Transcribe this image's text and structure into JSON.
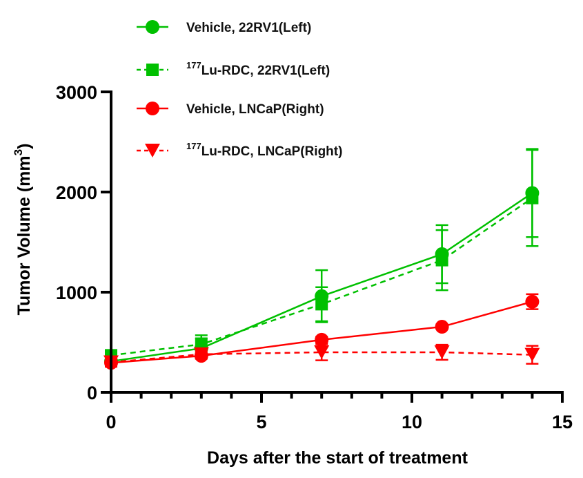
{
  "chart_data": {
    "type": "line",
    "title": "",
    "xlabel": "Days after the start of treatment",
    "ylabel": "Tumor Volume (mm",
    "ylabel_sup": "3",
    "ylabel_end": ")",
    "xlim": [
      0,
      15
    ],
    "ylim": [
      0,
      3000
    ],
    "xticks": [
      0,
      5,
      10,
      15
    ],
    "xtick_labels": [
      "0",
      "5",
      "10",
      "15"
    ],
    "xminor_step": 1,
    "yticks": [
      0,
      1000,
      2000,
      3000
    ],
    "ytick_labels": [
      "0",
      "1000",
      "2000",
      "3000"
    ],
    "grid": false,
    "legend_position": "top",
    "x": [
      0,
      3,
      7,
      11,
      14
    ],
    "series": [
      {
        "name": "Vehicle, 22RV1(Left)",
        "legend_sup": "",
        "legend_text": "Vehicle, 22RV1(Left)",
        "color": "#00c000",
        "marker": "circle",
        "dash": false,
        "values": [
          310,
          440,
          960,
          1380,
          1990
        ],
        "errors": [
          40,
          100,
          260,
          290,
          440
        ]
      },
      {
        "name": "177Lu-RDC, 22RV1(Left)",
        "legend_sup": "177",
        "legend_text": "Lu-RDC, 22RV1(Left)",
        "color": "#00c000",
        "marker": "square",
        "dash": true,
        "values": [
          370,
          480,
          880,
          1320,
          1940
        ],
        "errors": [
          40,
          90,
          170,
          300,
          480
        ]
      },
      {
        "name": "Vehicle, LNCaP(Right)",
        "legend_sup": "",
        "legend_text": "Vehicle, LNCaP(Right)",
        "color": "#ff0000",
        "marker": "circle",
        "dash": false,
        "values": [
          295,
          365,
          525,
          655,
          905
        ],
        "errors": [
          40,
          30,
          30,
          25,
          75
        ]
      },
      {
        "name": "177Lu-RDC, LNCaP(Right)",
        "legend_sup": "177",
        "legend_text": "Lu-RDC, LNCaP(Right)",
        "color": "#ff0000",
        "marker": "triangle-down",
        "dash": true,
        "values": [
          300,
          380,
          400,
          400,
          375
        ],
        "errors": [
          30,
          30,
          80,
          75,
          90
        ]
      }
    ]
  }
}
